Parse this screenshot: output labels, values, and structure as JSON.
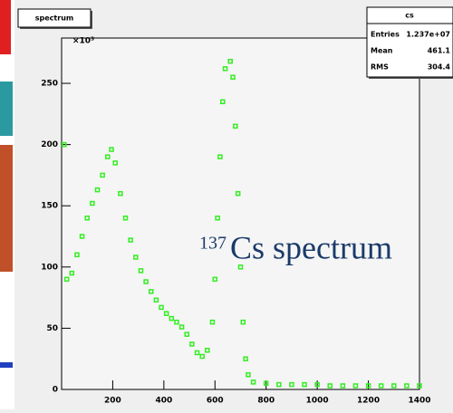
{
  "chart_data": {
    "type": "scatter",
    "title": "spectrum",
    "y_exponent": "×10³",
    "annotation": {
      "superscript": "137",
      "text": "Cs spectrum"
    },
    "stats": {
      "title": "cs",
      "rows": [
        [
          "Entries",
          "1.237e+07"
        ],
        [
          "Mean",
          "461.1"
        ],
        [
          "RMS",
          "304.4"
        ]
      ]
    },
    "xlim": [
      0,
      1400
    ],
    "xticks": [
      200,
      400,
      600,
      800,
      1000,
      1200,
      1400
    ],
    "ylim": [
      0,
      287
    ],
    "yticks": [
      0,
      50,
      100,
      150,
      200,
      250
    ],
    "series": [
      {
        "color": "#33ee22",
        "x": [
          10,
          20,
          40,
          60,
          80,
          100,
          120,
          140,
          160,
          180,
          195,
          210,
          230,
          250,
          270,
          290,
          310,
          330,
          350,
          370,
          390,
          410,
          430,
          450,
          470,
          490,
          510,
          530,
          550,
          570,
          590,
          600,
          610,
          620,
          630,
          640,
          660,
          670,
          680,
          690,
          700,
          710,
          720,
          730,
          750,
          800,
          850,
          900,
          950,
          1000,
          1050,
          1100,
          1150,
          1200,
          1250,
          1300,
          1350,
          1400
        ],
        "values": [
          200,
          90,
          95,
          110,
          125,
          140,
          152,
          163,
          175,
          190,
          196,
          185,
          160,
          140,
          122,
          108,
          97,
          88,
          80,
          73,
          67,
          62,
          58,
          55,
          51,
          45,
          37,
          30,
          27,
          32,
          55,
          90,
          140,
          190,
          235,
          262,
          268,
          255,
          215,
          160,
          100,
          55,
          25,
          12,
          6,
          5,
          4,
          4,
          4,
          4,
          3,
          3,
          3,
          3,
          3,
          3,
          3,
          3
        ]
      }
    ]
  }
}
